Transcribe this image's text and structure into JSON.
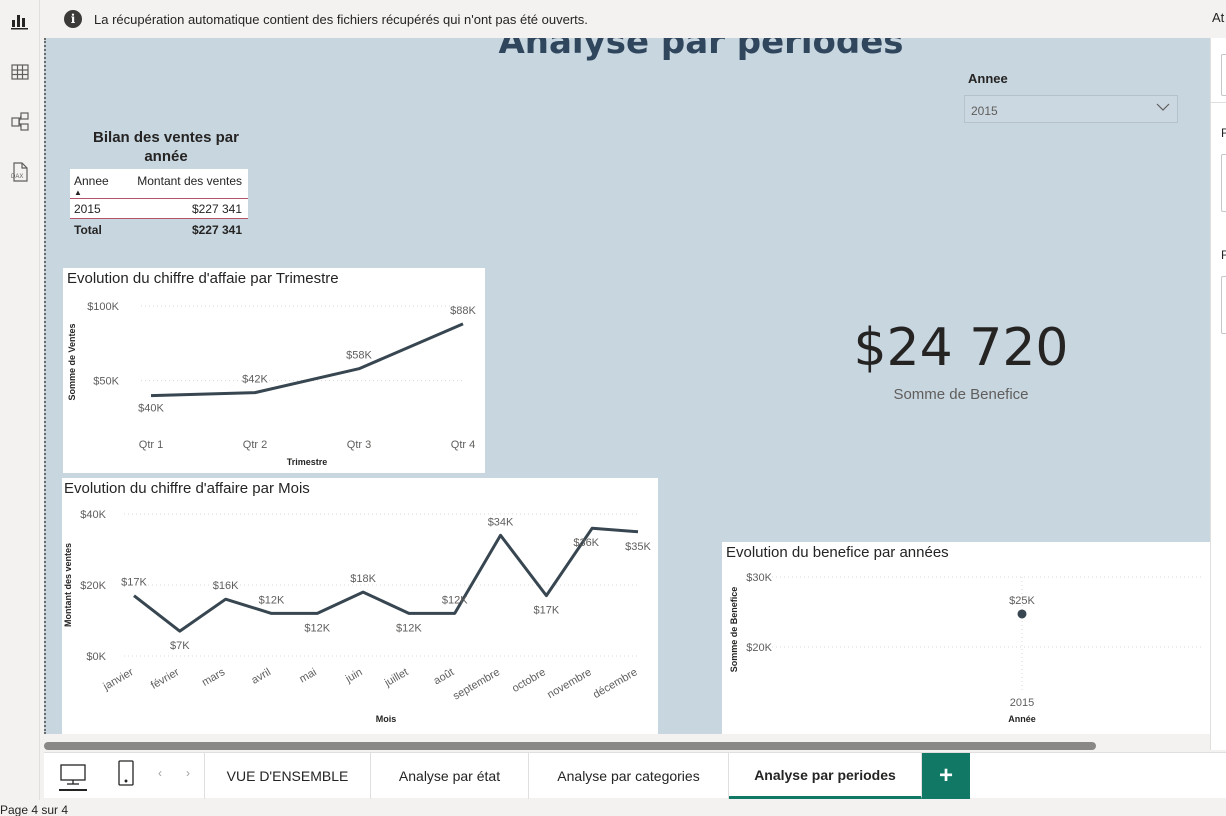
{
  "infobar": {
    "message": "La récupération automatique contient des fichiers récupérés qui n'ont pas été ouverts.",
    "right_text": "At"
  },
  "rail": {
    "icons": [
      "report-view-icon",
      "table-view-icon",
      "model-view-icon",
      "dax-query-icon"
    ]
  },
  "page": {
    "title": "Analyse par periodes"
  },
  "slicer": {
    "label": "Annee",
    "value": "2015"
  },
  "sales_table": {
    "title": "Bilan des ventes par année",
    "columns": [
      "Annee",
      "Montant des ventes"
    ],
    "rows": [
      {
        "annee": "2015",
        "montant": "$227 341"
      }
    ],
    "total_label": "Total",
    "total_value": "$227 341"
  },
  "kpi": {
    "value": "$24 720",
    "label": "Somme de Benefice"
  },
  "charts": [
    {
      "type": "line",
      "title": "Evolution du chiffre d'affaie par Trimestre",
      "xlabel": "Trimestre",
      "ylabel": "Somme de Ventes",
      "y_ticks": [
        "$100K",
        "$50K"
      ],
      "y_tick_values": [
        100,
        50
      ],
      "ylim": [
        25,
        100
      ],
      "categories": [
        "Qtr 1",
        "Qtr 2",
        "Qtr 3",
        "Qtr 4"
      ],
      "values": [
        40,
        42,
        58,
        88
      ],
      "labels": [
        "$40K",
        "$42K",
        "$58K",
        "$88K"
      ]
    },
    {
      "type": "line",
      "title": "Evolution du chiffre d'affaire par Mois",
      "xlabel": "Mois",
      "ylabel": "Montant des ventes",
      "y_ticks": [
        "$40K",
        "$20K",
        "$0K"
      ],
      "y_tick_values": [
        40,
        20,
        0
      ],
      "ylim": [
        0,
        40
      ],
      "categories": [
        "janvier",
        "février",
        "mars",
        "avril",
        "mai",
        "juin",
        "juillet",
        "août",
        "septembre",
        "octobre",
        "novembre",
        "décembre"
      ],
      "values": [
        17,
        7,
        16,
        12,
        12,
        18,
        12,
        12,
        34,
        17,
        36,
        35
      ],
      "labels": [
        "$17K",
        "$7K",
        "$16K",
        "$12K",
        "$12K",
        "$18K",
        "$12K",
        "$12K",
        "$34K",
        "$17K",
        "$36K",
        "$35K"
      ]
    },
    {
      "type": "scatter",
      "title": "Evolution du benefice par années",
      "xlabel": "Année",
      "ylabel": "Somme de Benefice",
      "y_ticks": [
        "$30K",
        "$20K"
      ],
      "y_tick_values": [
        30,
        20
      ],
      "ylim": [
        15,
        30
      ],
      "categories": [
        "2015"
      ],
      "values": [
        24.72
      ],
      "labels": [
        "$25K"
      ]
    }
  ],
  "tabs": [
    {
      "label": "VUE D'ENSEMBLE",
      "active": false
    },
    {
      "label": "Analyse par état",
      "active": false
    },
    {
      "label": "Analyse par categories",
      "active": false
    },
    {
      "label": "Analyse par periodes",
      "active": true
    }
  ],
  "add_tab_label": "+",
  "status": {
    "page": "Page 4 sur 4"
  },
  "colors": {
    "line": "#374650",
    "canvas": "#c8d6e0",
    "accent": "#117865"
  }
}
